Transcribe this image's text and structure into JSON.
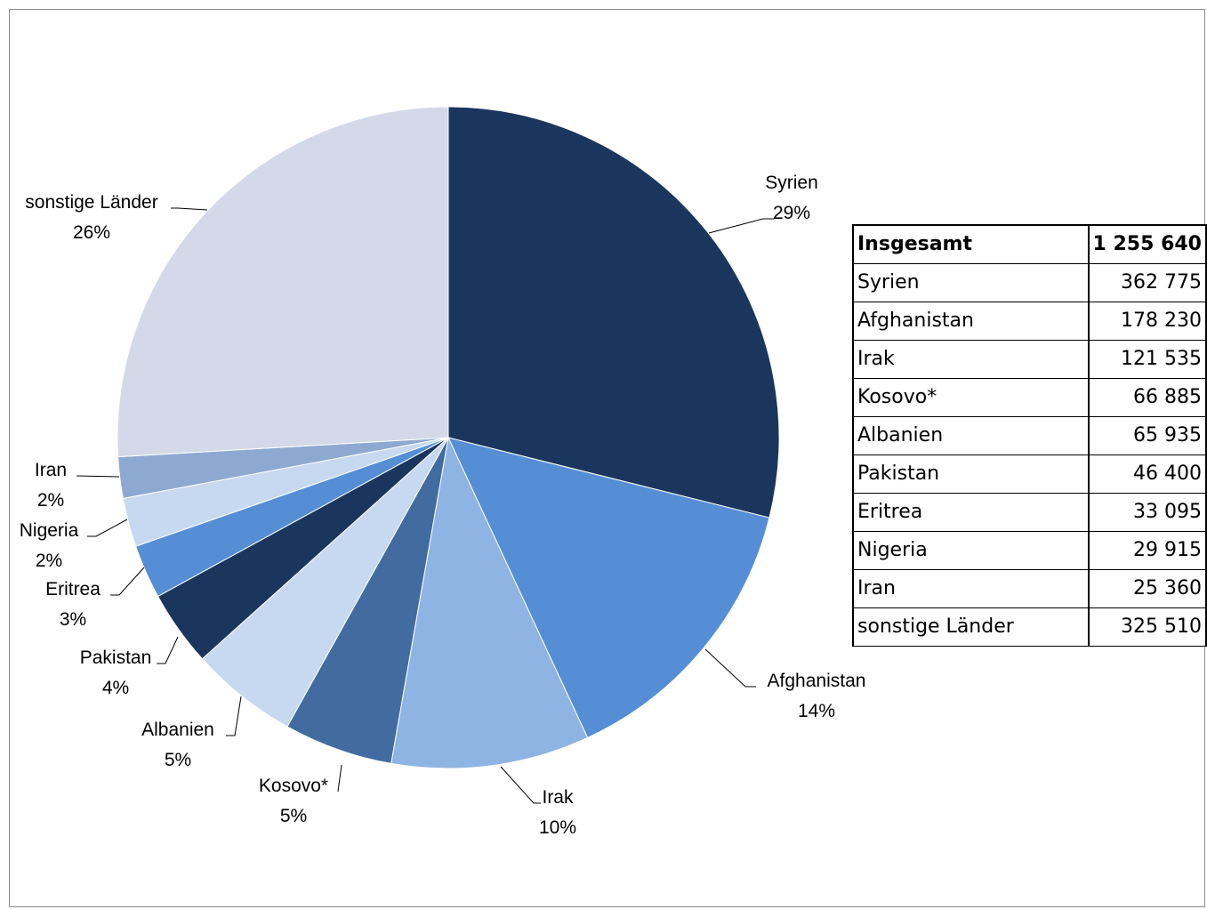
{
  "chart_data": {
    "type": "pie",
    "start_angle_deg": 0,
    "direction": "clockwise",
    "slices": [
      {
        "label": "Syrien",
        "pct_label": "29%",
        "value": 362775,
        "color": "#1b365d"
      },
      {
        "label": "Afghanistan",
        "pct_label": "14%",
        "value": 178230,
        "color": "#558ed5"
      },
      {
        "label": "Irak",
        "pct_label": "10%",
        "value": 121535,
        "color": "#8eb4e3"
      },
      {
        "label": "Kosovo*",
        "pct_label": "5%",
        "value": 66885,
        "color": "#426c9f"
      },
      {
        "label": "Albanien",
        "pct_label": "5%",
        "value": 65935,
        "color": "#c6d9f1"
      },
      {
        "label": "Pakistan",
        "pct_label": "4%",
        "value": 46400,
        "color": "#1b365d"
      },
      {
        "label": "Eritrea",
        "pct_label": "3%",
        "value": 33095,
        "color": "#558ed5"
      },
      {
        "label": "Nigeria",
        "pct_label": "2%",
        "value": 29915,
        "color": "#c6d9f1"
      },
      {
        "label": "Iran",
        "pct_label": "2%",
        "value": 25360,
        "color": "#8ea9d1"
      },
      {
        "label": "sonstige Länder",
        "pct_label": "26%",
        "value": 325510,
        "color": "#d3d9e8"
      }
    ]
  },
  "table": {
    "total_label": "Insgesamt",
    "total_value": "1 255 640",
    "rows": [
      {
        "name": "Syrien",
        "value": "362 775"
      },
      {
        "name": "Afghanistan",
        "value": "178 230"
      },
      {
        "name": "Irak",
        "value": "121 535"
      },
      {
        "name": "Kosovo*",
        "value": "66 885"
      },
      {
        "name": "Albanien",
        "value": "65 935"
      },
      {
        "name": "Pakistan",
        "value": "46 400"
      },
      {
        "name": "Eritrea",
        "value": "33 095"
      },
      {
        "name": "Nigeria",
        "value": "29 915"
      },
      {
        "name": "Iran",
        "value": "25 360"
      },
      {
        "name": "sonstige Länder",
        "value": "325 510"
      }
    ]
  }
}
